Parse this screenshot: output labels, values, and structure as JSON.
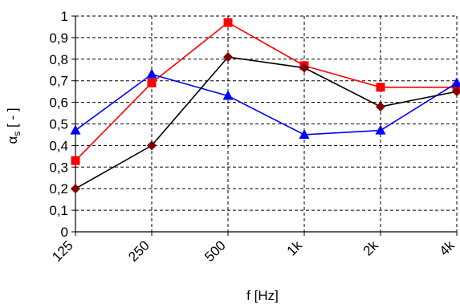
{
  "chart_data": {
    "type": "line",
    "categories": [
      "125",
      "250",
      "500",
      "1k",
      "2k",
      "4k"
    ],
    "xlabel": "f [Hz]",
    "ylabel_main": "α",
    "ylabel_sub": "s",
    "ylabel_unit": " [ - ]",
    "ylim": [
      0,
      1
    ],
    "yticks": [
      0,
      0.1,
      0.2,
      0.3,
      0.4,
      0.5,
      0.6,
      0.7,
      0.8,
      0.9,
      1
    ],
    "ytick_labels": [
      "0",
      "0,1",
      "0,2",
      "0,3",
      "0,4",
      "0,5",
      "0,6",
      "0,7",
      "0,8",
      "0,9",
      "1"
    ],
    "grid": true,
    "legend": "none",
    "series": [
      {
        "color": "#ff0000",
        "marker": "square",
        "values": [
          0.33,
          0.69,
          0.97,
          0.77,
          0.67,
          0.67
        ]
      },
      {
        "color": "#0000ff",
        "marker": "triangle",
        "values": [
          0.47,
          0.73,
          0.63,
          0.45,
          0.47,
          0.69
        ]
      },
      {
        "color": "#000000",
        "marker_color": "#800000",
        "marker": "diamond",
        "values": [
          0.2,
          0.4,
          0.81,
          0.76,
          0.58,
          0.65
        ]
      }
    ]
  }
}
